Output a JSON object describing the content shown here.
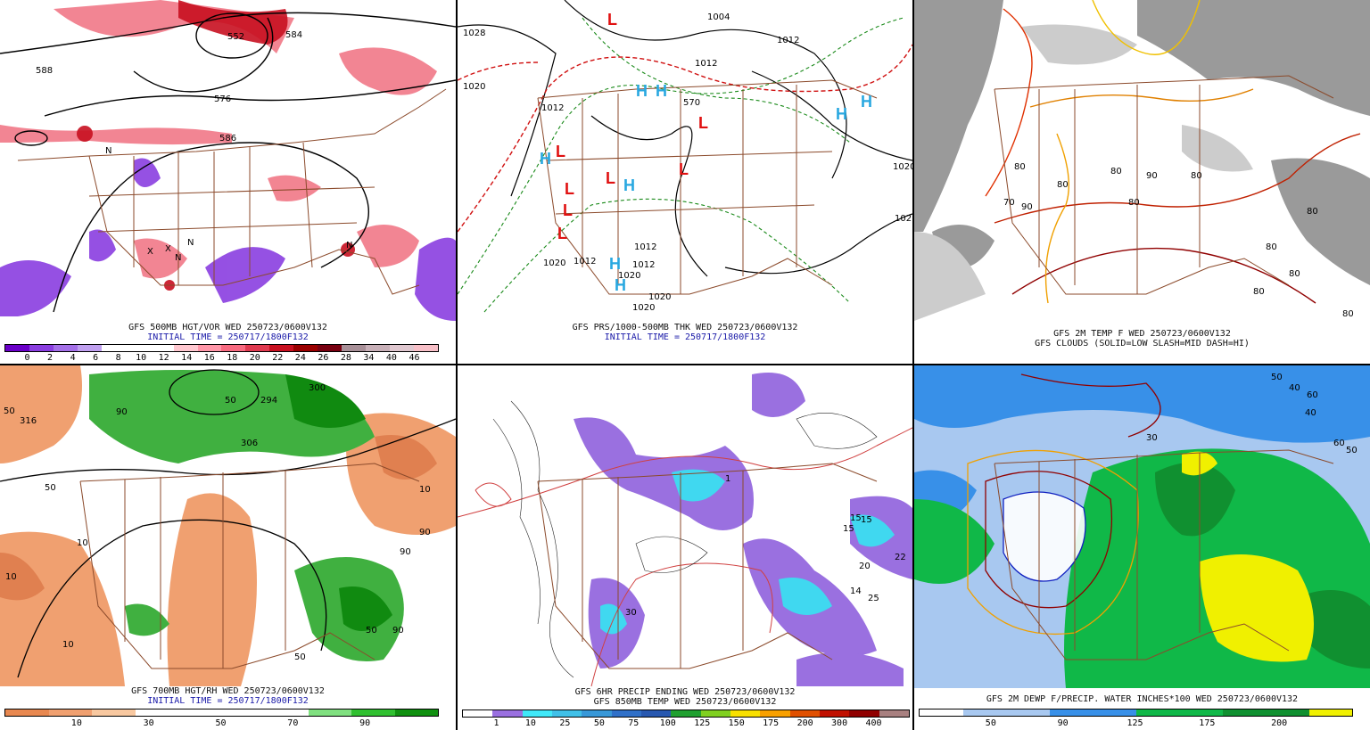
{
  "panels": [
    {
      "id": "p1",
      "title": "GFS 500MB HGT/VOR WED 250723/0600V132",
      "subtitle": "INITIAL TIME = 250717/1800F132",
      "colorbar": {
        "colors": [
          "#6a00c8",
          "#8a3ee0",
          "#a470e8",
          "#c0a0f0",
          "#ffffff",
          "#ffffff",
          "#ffffff",
          "#ffc8d0",
          "#ff96a8",
          "#f86a80",
          "#e03a50",
          "#c81020",
          "#9a0000",
          "#780010",
          "#a89098",
          "#c8b0b8",
          "#e0c8d0",
          "#f8c0c8"
        ],
        "labels": [
          "0",
          "2",
          "4",
          "6",
          "8",
          "10",
          "12",
          "14",
          "16",
          "18",
          "20",
          "22",
          "24",
          "26",
          "28",
          "34",
          "40",
          "46"
        ]
      },
      "map_labels": [
        "588",
        "552",
        "584",
        "576",
        "586",
        "N",
        "N",
        "X",
        "X",
        "N",
        "N"
      ]
    },
    {
      "id": "p2",
      "title": "GFS PRS/1000-500MB THK WED 250723/0600V132",
      "subtitle": "INITIAL TIME = 250717/1800F132",
      "map_labels": [
        "1028",
        "1004",
        "1012",
        "1020",
        "1012",
        "1012",
        "1020",
        "1020",
        "1012",
        "1012",
        "1020",
        "1020",
        "1020",
        "1012",
        "102",
        "570"
      ],
      "highs": [
        "H",
        "H",
        "H",
        "H",
        "H",
        "H",
        "H",
        "H"
      ],
      "lows": [
        "L",
        "L",
        "L",
        "L",
        "L",
        "L",
        "L",
        "L"
      ]
    },
    {
      "id": "p3",
      "title": "GFS 2M TEMP F WED 250723/0600V132",
      "subtitle": "GFS CLOUDS (SOLID=LOW SLASH=MID DASH=HI)",
      "map_labels": [
        "80",
        "80",
        "90",
        "80",
        "80",
        "80",
        "80",
        "80",
        "70",
        "90",
        "80",
        "80",
        "80"
      ]
    },
    {
      "id": "p4",
      "title": "GFS 700MB HGT/RH WED 250723/0600V132",
      "subtitle": "INITIAL TIME = 250717/1800F132",
      "colorbar": {
        "colors": [
          "#e88850",
          "#f0a070",
          "#f8c8a0",
          "#ffffff",
          "#ffffff",
          "#ffffff",
          "#ffffff",
          "#80e080",
          "#30c030",
          "#109010"
        ],
        "labels": [
          "10",
          "30",
          "50",
          "70",
          "90"
        ]
      },
      "map_labels": [
        "50",
        "316",
        "90",
        "50",
        "300",
        "294",
        "306",
        "10",
        "50",
        "10",
        "90",
        "90",
        "90",
        "50",
        "10",
        "10",
        "50"
      ]
    },
    {
      "id": "p5",
      "title": "GFS 6HR PRECIP ENDING WED 250723/0600V132",
      "subtitle": "GFS 850MB TEMP WED 250723/0600V132",
      "colorbar": {
        "colors": [
          "#ffffff",
          "#9a70e0",
          "#40e8f8",
          "#40c0e8",
          "#3898d8",
          "#3070c8",
          "#2858b0",
          "#20a030",
          "#80d020",
          "#f8e000",
          "#f8a000",
          "#e05000",
          "#c01000",
          "#900000",
          "#a88080"
        ],
        "labels": [
          "1",
          "10",
          "25",
          "50",
          "75",
          "100",
          "125",
          "150",
          "175",
          "200",
          "300",
          "400"
        ]
      },
      "map_labels": [
        "15",
        "20",
        "22",
        "14",
        "25",
        "15",
        "15",
        "30",
        "1"
      ]
    },
    {
      "id": "p6",
      "title": "GFS 2M DEWP F/PRECIP. WATER INCHES*100 WED 250723/0600V132",
      "subtitle": "",
      "colorbar": {
        "colors": [
          "#ffffff",
          "#a8c8f0",
          "#a8c8f0",
          "#3890e8",
          "#3890e8",
          "#10b848",
          "#10b848",
          "#109030",
          "#109030",
          "#f0f000"
        ],
        "labels": [
          "50",
          "90",
          "125",
          "175",
          "200"
        ]
      },
      "map_labels": [
        "50",
        "60",
        "40",
        "40",
        "30",
        "50",
        "60"
      ]
    }
  ]
}
